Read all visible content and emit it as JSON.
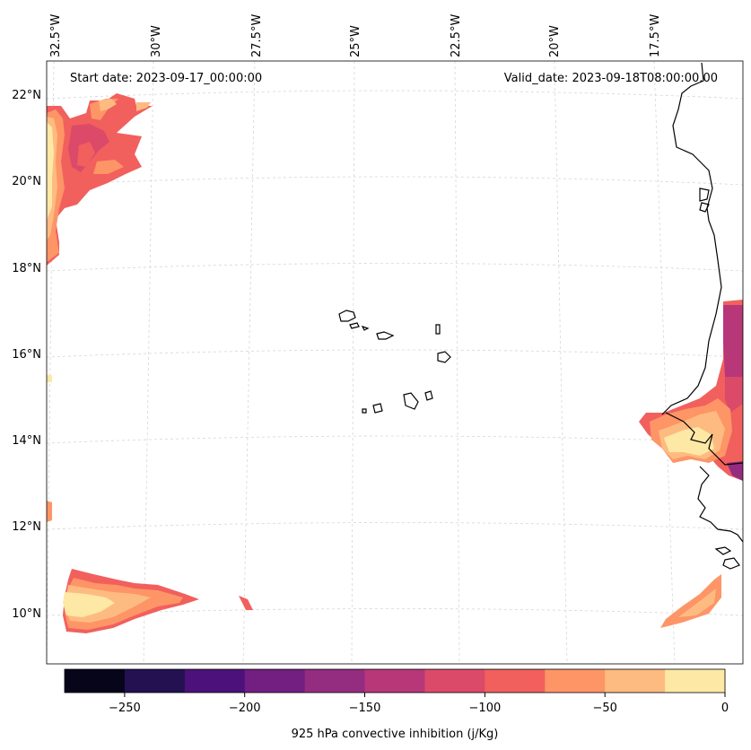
{
  "map": {
    "start_date_text": "Start date: 2023-09-17_00:00:00",
    "valid_date_text": "Valid_date: 2023-09-18T08:00:00.00",
    "lon_labels": [
      "32.5°W",
      "30°W",
      "27.5°W",
      "25°W",
      "22.5°W",
      "20°W",
      "17.5°W"
    ],
    "lat_labels": [
      "22°N",
      "20°N",
      "18°N",
      "16°N",
      "14°N",
      "12°N",
      "10°N"
    ]
  },
  "colorbar": {
    "label": "925 hPa convective inhibition (j/Kg)",
    "ticks": [
      "−250",
      "−200",
      "−150",
      "−100",
      "−50",
      "0"
    ],
    "levels": [
      -275,
      -250,
      -225,
      -200,
      -175,
      -150,
      -125,
      -100,
      -75,
      -50,
      -25,
      0
    ],
    "colors": [
      "#06051a",
      "#231151",
      "#4c117a",
      "#721f81",
      "#942c80",
      "#b73779",
      "#dc4a6a",
      "#f1605d",
      "#fd9567",
      "#febb81",
      "#fde8a5"
    ]
  }
}
